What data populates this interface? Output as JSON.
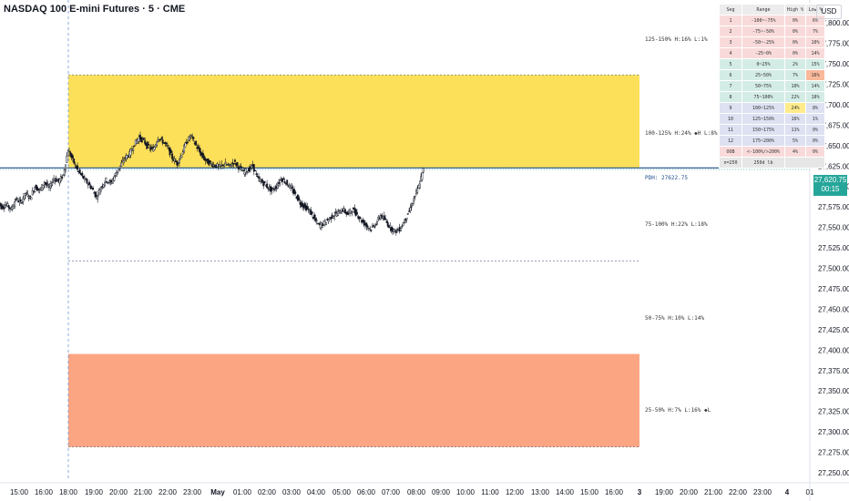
{
  "title": "NASDAQ 100 E-mini Futures · 5 · CME",
  "currency": "USD",
  "last_price": "27,620.75",
  "countdown": "00:15",
  "colors": {
    "up": "#131722",
    "down": "#131722",
    "yellow_zone": "#fde05a",
    "orange_zone": "#fca583",
    "pdh_line": "#1f4e8c",
    "price_tag": "#26a69a"
  },
  "zones": {
    "z125": "125-150%  H:16%  L:1%",
    "z100": "100-125%  H:24% ◆H  L:8%",
    "z75": "75-100%  H:22%  L:18%",
    "z50": "50-75%  H:10%  L:14%",
    "z25": "25-50%  H:7%  L:16% ◆L",
    "pdh": "PDH: 27622.75"
  },
  "stats_table": {
    "headers": [
      "Seg",
      "Range",
      "High %",
      "Low %"
    ],
    "rows": [
      {
        "seg": "1",
        "range": "-100~-75%",
        "high": "0%",
        "low": "6%"
      },
      {
        "seg": "2",
        "range": "-75~-50%",
        "high": "0%",
        "low": "7%"
      },
      {
        "seg": "3",
        "range": "-50~-25%",
        "high": "0%",
        "low": "10%"
      },
      {
        "seg": "4",
        "range": "-25~0%",
        "high": "0%",
        "low": "14%"
      },
      {
        "seg": "5",
        "range": "0~25%",
        "high": "2%",
        "low": "15%"
      },
      {
        "seg": "6",
        "range": "25~50%",
        "high": "7%",
        "low": "16%"
      },
      {
        "seg": "7",
        "range": "50~75%",
        "high": "10%",
        "low": "14%"
      },
      {
        "seg": "8",
        "range": "75~100%",
        "high": "22%",
        "low": "18%"
      },
      {
        "seg": "9",
        "range": "100~125%",
        "high": "24%",
        "low": "8%"
      },
      {
        "seg": "10",
        "range": "125~150%",
        "high": "16%",
        "low": "1%"
      },
      {
        "seg": "11",
        "range": "150~175%",
        "high": "11%",
        "low": "0%"
      },
      {
        "seg": "12",
        "range": "175~200%",
        "high": "5%",
        "low": "0%"
      },
      {
        "seg": "OOB",
        "range": "<-100%/>200%",
        "high": "4%",
        "low": "0%"
      }
    ],
    "footer": {
      "n": "n=250",
      "lb": "250d lb"
    }
  },
  "chart_data": {
    "type": "candlestick",
    "title": "NASDAQ 100 E-mini Futures · 5 · CME",
    "y_ticks": [
      27800,
      27775,
      27750,
      27725,
      27700,
      27675,
      27650,
      27625,
      27600,
      27575,
      27550,
      27525,
      27500,
      27475,
      27450,
      27425,
      27400,
      27375,
      27350,
      27325,
      27300,
      27275,
      27250
    ],
    "y_tick_labels": [
      "27,800.00",
      "27,775.00",
      "27,750.00",
      "27,725.00",
      "27,700.00",
      "27,675.00",
      "27,650.00",
      "27,625.00",
      "27,600.00",
      "27,575.00",
      "27,550.00",
      "27,525.00",
      "27,500.00",
      "27,475.00",
      "27,450.00",
      "27,425.00",
      "27,400.00",
      "27,375.00",
      "27,350.00",
      "27,325.00",
      "27,300.00",
      "27,275.00",
      "27,250.00"
    ],
    "ylim": [
      27240,
      27828
    ],
    "x_ticks": [
      "15:00",
      "16:00",
      "18:00",
      "19:00",
      "20:00",
      "21:00",
      "22:00",
      "23:00",
      "May",
      "01:00",
      "02:00",
      "03:00",
      "04:00",
      "05:00",
      "06:00",
      "07:00",
      "08:00",
      "09:00",
      "10:00",
      "11:00",
      "12:00",
      "13:00",
      "14:00",
      "15:00",
      "16:00",
      "3",
      "19:00",
      "20:00",
      "21:00",
      "22:00",
      "23:00",
      "4",
      "01"
    ],
    "pdh": 27622.75,
    "range_levels": {
      "p125": 27736.5,
      "p100": 27622.75,
      "p75": 27509,
      "p25": 27281.5,
      "p50": 27395.25
    },
    "zones": [
      {
        "name": "100-125%",
        "from": 27622.75,
        "to": 27736.5,
        "color": "#fde05a"
      },
      {
        "name": "25-50%",
        "from": 27281.5,
        "to": 27395.25,
        "color": "#fca583"
      }
    ],
    "close_path": [
      [
        -15,
        27582
      ],
      [
        -14,
        27575
      ],
      [
        -13,
        27578
      ],
      [
        -12,
        27572
      ],
      [
        -11,
        27585
      ],
      [
        -10,
        27580
      ],
      [
        -9,
        27592
      ],
      [
        -8,
        27586
      ],
      [
        -7,
        27600
      ],
      [
        -6,
        27595
      ],
      [
        -5,
        27605
      ],
      [
        -4,
        27598
      ],
      [
        -3,
        27610
      ],
      [
        -2,
        27606
      ],
      [
        -1,
        27614
      ],
      [
        0,
        27645
      ],
      [
        1,
        27632
      ],
      [
        2,
        27620
      ],
      [
        3,
        27612
      ],
      [
        4,
        27605
      ],
      [
        5,
        27598
      ],
      [
        6,
        27587
      ],
      [
        7,
        27600
      ],
      [
        8,
        27608
      ],
      [
        9,
        27604
      ],
      [
        10,
        27615
      ],
      [
        11,
        27625
      ],
      [
        12,
        27635
      ],
      [
        13,
        27640
      ],
      [
        14,
        27652
      ],
      [
        15,
        27660
      ],
      [
        16,
        27655
      ],
      [
        17,
        27648
      ],
      [
        18,
        27645
      ],
      [
        19,
        27660
      ],
      [
        20,
        27655
      ],
      [
        21,
        27648
      ],
      [
        22,
        27635
      ],
      [
        23,
        27628
      ],
      [
        24,
        27640
      ],
      [
        25,
        27655
      ],
      [
        26,
        27662
      ],
      [
        27,
        27650
      ],
      [
        28,
        27640
      ],
      [
        29,
        27632
      ],
      [
        30,
        27628
      ],
      [
        31,
        27626
      ],
      [
        32,
        27624
      ],
      [
        33,
        27628
      ],
      [
        34,
        27625
      ],
      [
        35,
        27630
      ],
      [
        36,
        27624
      ],
      [
        37,
        27618
      ],
      [
        38,
        27620
      ],
      [
        39,
        27625
      ],
      [
        40,
        27610
      ],
      [
        41,
        27605
      ],
      [
        42,
        27600
      ],
      [
        43,
        27595
      ],
      [
        44,
        27600
      ],
      [
        45,
        27610
      ],
      [
        46,
        27605
      ],
      [
        47,
        27598
      ],
      [
        48,
        27590
      ],
      [
        49,
        27580
      ],
      [
        50,
        27575
      ],
      [
        51,
        27570
      ],
      [
        52,
        27560
      ],
      [
        53,
        27552
      ],
      [
        54,
        27555
      ],
      [
        55,
        27560
      ],
      [
        56,
        27565
      ],
      [
        57,
        27568
      ],
      [
        58,
        27572
      ],
      [
        59,
        27566
      ],
      [
        60,
        27572
      ],
      [
        61,
        27566
      ],
      [
        62,
        27558
      ],
      [
        63,
        27552
      ],
      [
        64,
        27548
      ],
      [
        65,
        27555
      ],
      [
        66,
        27565
      ],
      [
        67,
        27558
      ],
      [
        68,
        27550
      ],
      [
        69,
        27545
      ],
      [
        70,
        27548
      ],
      [
        71,
        27558
      ],
      [
        72,
        27570
      ],
      [
        73,
        27585
      ],
      [
        74,
        27600
      ],
      [
        75,
        27620.75
      ]
    ]
  }
}
